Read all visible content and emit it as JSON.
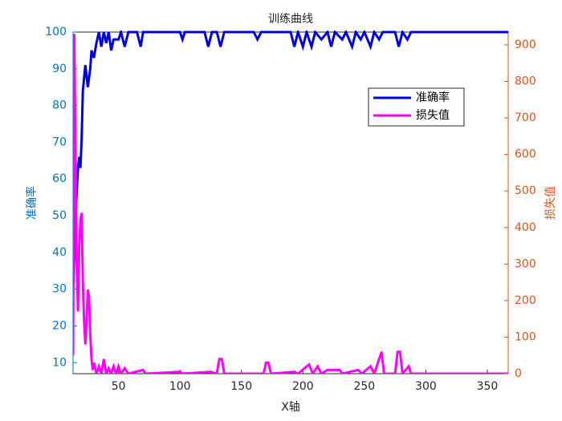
{
  "chart_data": {
    "type": "line",
    "title": "训练曲线",
    "x_label": "X轴",
    "y_label": "准确率",
    "y2_label": "损失值",
    "xlim": [
      13,
      367
    ],
    "xticks": [
      50,
      100,
      150,
      200,
      250,
      300,
      350
    ],
    "ylim": [
      7,
      100
    ],
    "yticks": [
      10,
      20,
      30,
      40,
      50,
      60,
      70,
      80,
      90,
      100
    ],
    "y2lim": [
      0,
      935
    ],
    "y2ticks": [
      0,
      100,
      200,
      300,
      400,
      500,
      600,
      700,
      800,
      900
    ],
    "y_color": "#0072bd",
    "y2_color": "#d95319",
    "legend": "upper right",
    "series": [
      {
        "name": "准确率",
        "color": "#0000dd",
        "x": [
          13,
          15,
          17,
          18,
          19,
          20,
          21,
          23,
          25,
          27,
          28,
          30,
          32,
          34,
          36,
          38,
          40,
          42,
          44,
          46,
          50,
          52,
          55,
          58,
          65,
          68,
          70,
          100,
          102,
          104,
          120,
          123,
          126,
          130,
          133,
          136,
          160,
          163,
          166,
          190,
          193,
          196,
          200,
          203,
          207,
          210,
          215,
          220,
          223,
          226,
          232,
          235,
          240,
          243,
          247,
          250,
          255,
          258,
          262,
          265,
          275,
          278,
          281,
          285,
          288,
          367
        ],
        "values": [
          30,
          50,
          63,
          66,
          63,
          71,
          84,
          91,
          85,
          90,
          95,
          93,
          97,
          100,
          96,
          100,
          97,
          100,
          95,
          98,
          98,
          100,
          96,
          100,
          100,
          96,
          100,
          100,
          98,
          100,
          100,
          96,
          100,
          100,
          96,
          100,
          100,
          98,
          100,
          100,
          96,
          100,
          96,
          100,
          96,
          100,
          98,
          100,
          96,
          100,
          98,
          100,
          96,
          100,
          98,
          100,
          96,
          100,
          98,
          100,
          100,
          96,
          100,
          98,
          100,
          100
        ]
      },
      {
        "name": "损失值",
        "color": "#ff00ff",
        "axis": "y2",
        "x": [
          13,
          14,
          15,
          16,
          17,
          18,
          19,
          20,
          21,
          22,
          23,
          24,
          25,
          26,
          27,
          28,
          29,
          30,
          32,
          34,
          36,
          38,
          40,
          42,
          44,
          46,
          48,
          50,
          52,
          55,
          58,
          70,
          72,
          100,
          102,
          125,
          130,
          132,
          134,
          136,
          168,
          170,
          172,
          174,
          193,
          196,
          205,
          208,
          212,
          215,
          220,
          230,
          232,
          245,
          248,
          255,
          258,
          262,
          264,
          266,
          275,
          277,
          279,
          281,
          286,
          288,
          367
        ],
        "values": [
          50,
          930,
          600,
          300,
          170,
          350,
          420,
          440,
          250,
          140,
          80,
          150,
          230,
          210,
          110,
          40,
          10,
          30,
          0,
          20,
          0,
          40,
          0,
          15,
          0,
          20,
          0,
          20,
          0,
          15,
          0,
          10,
          0,
          5,
          0,
          5,
          0,
          40,
          40,
          0,
          0,
          30,
          30,
          0,
          5,
          0,
          25,
          0,
          20,
          0,
          10,
          10,
          0,
          10,
          0,
          20,
          0,
          40,
          60,
          0,
          0,
          60,
          60,
          0,
          20,
          0,
          0
        ]
      }
    ]
  }
}
